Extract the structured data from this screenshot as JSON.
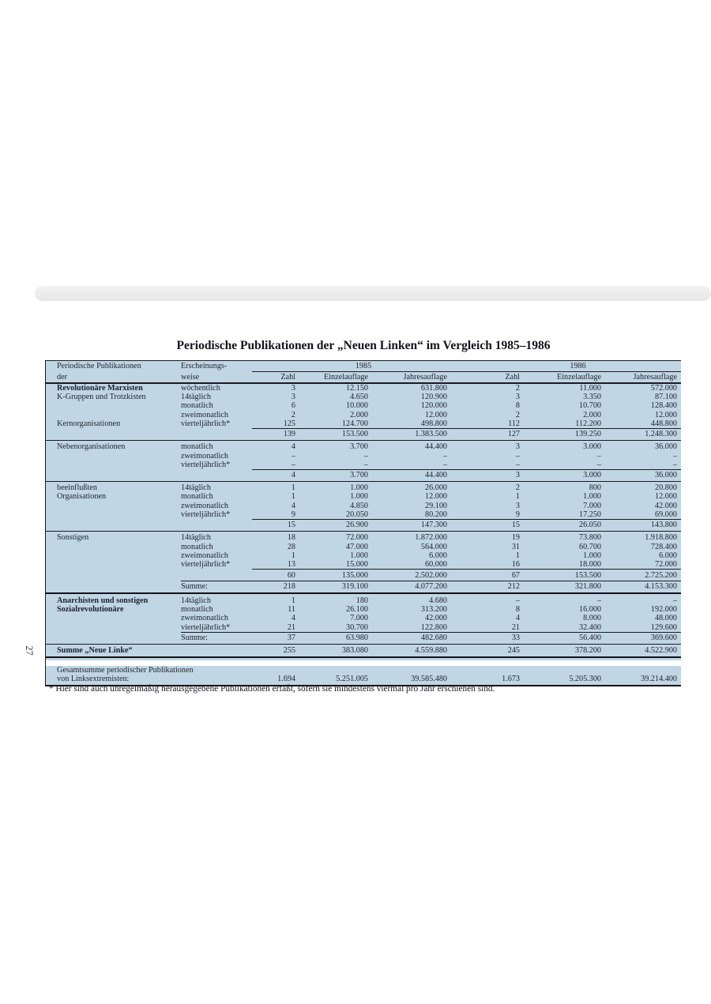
{
  "page": {
    "page_number": "27",
    "title": "Periodische Publikationen der „Neuen Linken“ im Vergleich 1985–1986",
    "footnote": "* Hier sind auch unregelmäßig herausgegebene Publikationen erfaßt, sofern sie mindestens viermal pro Jahr erschienen sind."
  },
  "colors": {
    "table_bg": "#c1d6e4",
    "line": "#1a1a22",
    "ink": "#1d2230"
  },
  "table": {
    "header": {
      "col1": [
        "Periodische Publikationen",
        "der"
      ],
      "col2": [
        "Erscheinungs-",
        "weise"
      ],
      "years": [
        "1985",
        "1986"
      ],
      "subcols": [
        "Zahl",
        "Einzelauflage",
        "Jahresauflage"
      ]
    },
    "rows": [
      {
        "t": "freq",
        "label": "Revolutionäre Marxisten",
        "bold": true,
        "weise": "wöchentlich",
        "v": [
          "3",
          "12.150",
          "631.800",
          "2",
          "11.000",
          "572.000"
        ]
      },
      {
        "t": "freq",
        "label": "K-Gruppen und Trotzkisten",
        "weise": "14täglich",
        "v": [
          "3",
          "4.650",
          "120.900",
          "3",
          "3.350",
          "87.100"
        ]
      },
      {
        "t": "freq",
        "weise": "monatlich",
        "v": [
          "6",
          "10.000",
          "120.000",
          "8",
          "10.700",
          "128.400"
        ]
      },
      {
        "t": "freq",
        "weise": "zweimonatlich",
        "v": [
          "2",
          "2.000",
          "12.000",
          "2",
          "2.000",
          "12.000"
        ]
      },
      {
        "t": "freq",
        "label": "Kernorganisationen",
        "weise": "vierteljährlich*",
        "v": [
          "125",
          "124.700",
          "498.800",
          "112",
          "112.200",
          "448.800"
        ]
      },
      {
        "t": "rule-num"
      },
      {
        "t": "subtotal",
        "v": [
          "139",
          "153.500",
          "1.383.500",
          "127",
          "139.250",
          "1.248.300"
        ]
      },
      {
        "t": "rule-full"
      },
      {
        "t": "freq",
        "label": "Nebenorganisationen",
        "weise": "monatlich",
        "v": [
          "4",
          "3.700",
          "44.400",
          "3",
          "3.000",
          "36.000"
        ]
      },
      {
        "t": "freq",
        "weise": "zweimonatlich",
        "v": [
          "–",
          "–",
          "–",
          "–",
          "–",
          "–"
        ]
      },
      {
        "t": "freq",
        "weise": "vierteljährlich*",
        "v": [
          "–",
          "–",
          "–",
          "–",
          "–",
          "–"
        ]
      },
      {
        "t": "rule-num"
      },
      {
        "t": "subtotal",
        "v": [
          "4",
          "3.700",
          "44.400",
          "3",
          "3.000",
          "36.000"
        ]
      },
      {
        "t": "rule-full"
      },
      {
        "t": "freq",
        "label": "beeinflußten",
        "weise": "14täglich",
        "v": [
          "1",
          "1.000",
          "26.000",
          "2",
          "800",
          "20.800"
        ]
      },
      {
        "t": "freq",
        "label": "Organisationen",
        "weise": "monatlich",
        "v": [
          "1",
          "1.000",
          "12.000",
          "1",
          "1.000",
          "12.000"
        ]
      },
      {
        "t": "freq",
        "weise": "zweimonatlich",
        "v": [
          "4",
          "4.850",
          "29.100",
          "3",
          "7.000",
          "42.000"
        ]
      },
      {
        "t": "freq",
        "weise": "vierteljährlich*",
        "v": [
          "9",
          "20.050",
          "80.200",
          "9",
          "17.250",
          "69.000"
        ]
      },
      {
        "t": "rule-num"
      },
      {
        "t": "subtotal",
        "v": [
          "15",
          "26.900",
          "147.300",
          "15",
          "26.050",
          "143.800"
        ]
      },
      {
        "t": "rule-full"
      },
      {
        "t": "freq",
        "label": "Sonstigen",
        "weise": "14täglich",
        "v": [
          "18",
          "72.000",
          "1.872.000",
          "19",
          "73.800",
          "1.918.800"
        ]
      },
      {
        "t": "freq",
        "weise": "monatlich",
        "v": [
          "28",
          "47.000",
          "564.000",
          "31",
          "60.700",
          "728.400"
        ]
      },
      {
        "t": "freq",
        "weise": "zweimonatlich",
        "v": [
          "1",
          "1.000",
          "6.000",
          "1",
          "1.000",
          "6.000"
        ]
      },
      {
        "t": "freq",
        "weise": "vierteljährlich*",
        "v": [
          "13",
          "15.000",
          "60.000",
          "16",
          "18.000",
          "72.000"
        ]
      },
      {
        "t": "rule-num"
      },
      {
        "t": "subtotal",
        "v": [
          "60",
          "135.000",
          "2.502.000",
          "67",
          "153.500",
          "2.725.200"
        ]
      },
      {
        "t": "rule-weise"
      },
      {
        "t": "summe",
        "weise": "Summe:",
        "v": [
          "218",
          "319.100",
          "4.077.200",
          "212",
          "321.800",
          "4.153.300"
        ]
      },
      {
        "t": "rule-heavy"
      },
      {
        "t": "freq",
        "label": "Anarchisten und sonstigen",
        "bold": true,
        "weise": "14täglich",
        "v": [
          "1",
          "180",
          "4.680",
          "–",
          "–",
          "–"
        ]
      },
      {
        "t": "freq",
        "label": "Sozialrevolutionäre",
        "bold": true,
        "weise": "monatlich",
        "v": [
          "11",
          "26.100",
          "313.200",
          "8",
          "16.000",
          "192.000"
        ]
      },
      {
        "t": "freq",
        "weise": "zweimonatlich",
        "v": [
          "4",
          "7.000",
          "42.000",
          "4",
          "8.000",
          "48.000"
        ]
      },
      {
        "t": "freq",
        "weise": "vierteljährlich*",
        "v": [
          "21",
          "30.700",
          "122.800",
          "21",
          "32.400",
          "129.600"
        ]
      },
      {
        "t": "rule-weise"
      },
      {
        "t": "summe",
        "weise": "Summe:",
        "v": [
          "37",
          "63.980",
          "482.680",
          "33",
          "56.400",
          "369.600"
        ]
      },
      {
        "t": "rule-full"
      },
      {
        "t": "grand",
        "label": "Summe „Neue Linke“",
        "v": [
          "255",
          "383.080",
          "4.559.880",
          "245",
          "378.200",
          "4.522.900"
        ]
      },
      {
        "t": "rule-heavy"
      },
      {
        "t": "gap"
      },
      {
        "t": "total",
        "label1": "Gesamtsumme periodischer Publikationen",
        "label2": "von Linksextremisten:",
        "v": [
          "1.694",
          "5.251.005",
          "39.585.480",
          "1.673",
          "5.205.300",
          "39.214.400"
        ]
      }
    ]
  }
}
